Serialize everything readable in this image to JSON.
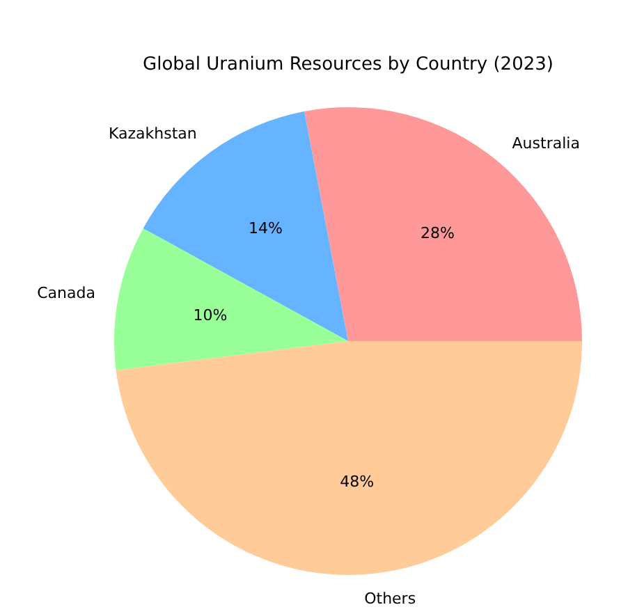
{
  "chart_data": {
    "type": "pie",
    "title": "Global Uranium Resources by Country (2023)",
    "categories": [
      "Australia",
      "Kazakhstan",
      "Canada",
      "Others"
    ],
    "values": [
      28,
      14,
      10,
      48
    ],
    "colors": [
      "#ff9999",
      "#66b3ff",
      "#99ff99",
      "#ffcc99"
    ],
    "value_labels": [
      "28%",
      "14%",
      "10%",
      "48%"
    ]
  }
}
